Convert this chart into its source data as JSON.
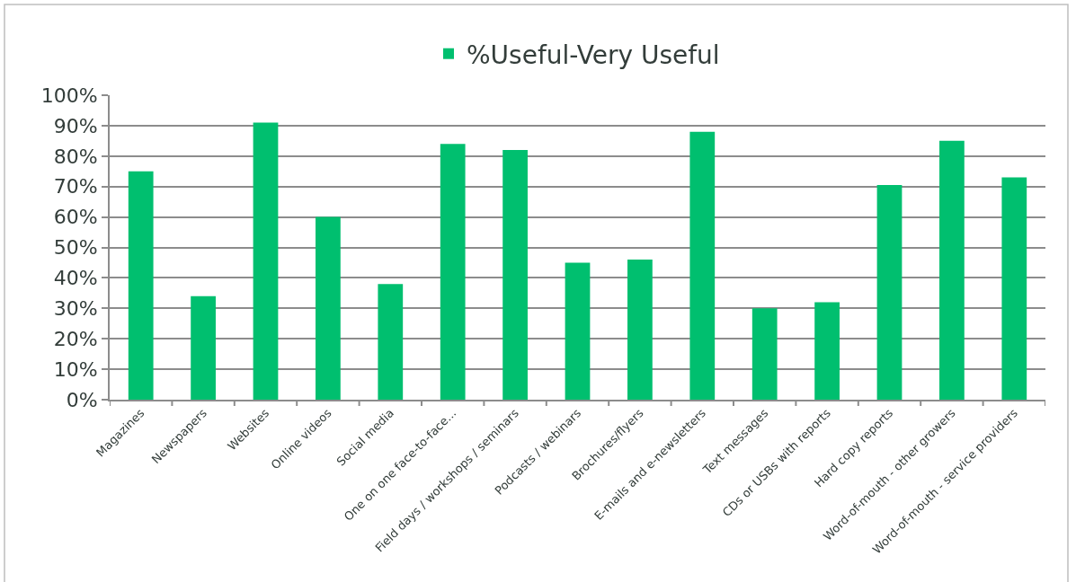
{
  "chart_data": {
    "type": "bar",
    "categories": [
      "Magazines",
      "Newspapers",
      "Websites",
      "Online videos",
      "Social media",
      "One on one face-to-face...",
      "Field days / workshops / seminars",
      "Podcasts / webinars",
      "Brochures/flyers",
      "E-mails and e-newsletters",
      "Text messages",
      "CDs or USBs with reports",
      "Hard copy reports",
      "Word-of-mouth - other growers",
      "Word-of-mouth - service providers"
    ],
    "series": [
      {
        "name": "%Useful-Very Useful",
        "color": "#00bf6f",
        "values": [
          75,
          34,
          91,
          60,
          38,
          84,
          82,
          45,
          46,
          88,
          30,
          32,
          70.5,
          85,
          73
        ]
      }
    ],
    "ylim": [
      0,
      100
    ],
    "yticks": [
      {
        "value": 0,
        "label": "0%"
      },
      {
        "value": 10,
        "label": "10%"
      },
      {
        "value": 20,
        "label": "20%"
      },
      {
        "value": 30,
        "label": "30%"
      },
      {
        "value": 40,
        "label": "40%"
      },
      {
        "value": 50,
        "label": "50%"
      },
      {
        "value": 60,
        "label": "60%"
      },
      {
        "value": 70,
        "label": "70%"
      },
      {
        "value": 80,
        "label": "80%"
      },
      {
        "value": 90,
        "label": "90%"
      },
      {
        "value": 100,
        "label": "100%"
      }
    ],
    "grid": "y",
    "legend": "top"
  }
}
